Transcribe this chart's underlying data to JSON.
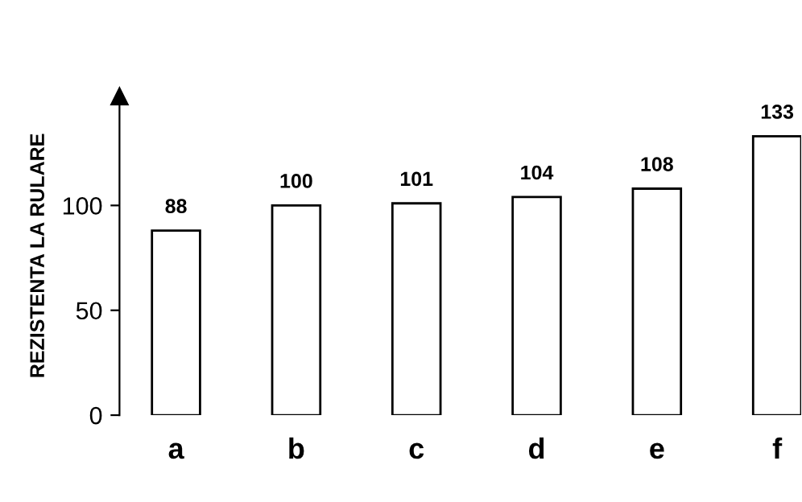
{
  "chart_data": {
    "type": "bar",
    "ylabel": "REZISTENTA LA RULARE",
    "categories": [
      "a",
      "b",
      "c",
      "d",
      "e",
      "f"
    ],
    "values": [
      88,
      100,
      101,
      104,
      108,
      133
    ],
    "color": "#ffffff",
    "ylim": [
      0,
      152
    ],
    "yticks": [
      0,
      50,
      100
    ],
    "data_labels": true,
    "grid": false,
    "legend": false
  }
}
